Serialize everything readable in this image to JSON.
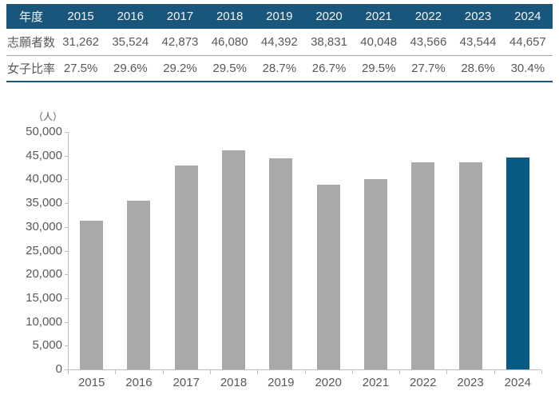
{
  "colors": {
    "accent_teal": "#19567C",
    "header_text": "#F2F2F2",
    "body_text": "#595959",
    "bar_gray": "#A9A9A9",
    "bar_highlight": "#0A5A86",
    "axis_line": "#BFBFBF"
  },
  "table": {
    "header_label": "年度",
    "years": [
      "2015",
      "2016",
      "2017",
      "2018",
      "2019",
      "2020",
      "2021",
      "2022",
      "2023",
      "2024"
    ],
    "rows": [
      {
        "label": "志願者数",
        "values": [
          "31,262",
          "35,524",
          "42,873",
          "46,080",
          "44,392",
          "38,831",
          "40,048",
          "43,566",
          "43,544",
          "44,657"
        ]
      },
      {
        "label": "女子比率",
        "values": [
          "27.5%",
          "29.6%",
          "29.2%",
          "29.5%",
          "28.7%",
          "26.7%",
          "29.5%",
          "27.7%",
          "28.6%",
          "30.4%"
        ]
      }
    ]
  },
  "chart_data": {
    "type": "bar",
    "title": "",
    "unit_label": "（人）",
    "categories": [
      "2015",
      "2016",
      "2017",
      "2018",
      "2019",
      "2020",
      "2021",
      "2022",
      "2023",
      "2024"
    ],
    "values": [
      31262,
      35524,
      42873,
      46080,
      44392,
      38831,
      40048,
      43566,
      43544,
      44657
    ],
    "highlight_index": 9,
    "xlabel": "",
    "ylabel": "（人）",
    "ylim": [
      0,
      50000
    ],
    "ytick_interval": 5000,
    "ytick_labels": [
      "0",
      "5,000",
      "10,000",
      "15,000",
      "20,000",
      "25,000",
      "30,000",
      "35,000",
      "40,000",
      "45,000",
      "50,000"
    ],
    "grid": false,
    "legend": false,
    "bar_color": "#A9A9A9",
    "highlight_color": "#0A5A86"
  }
}
